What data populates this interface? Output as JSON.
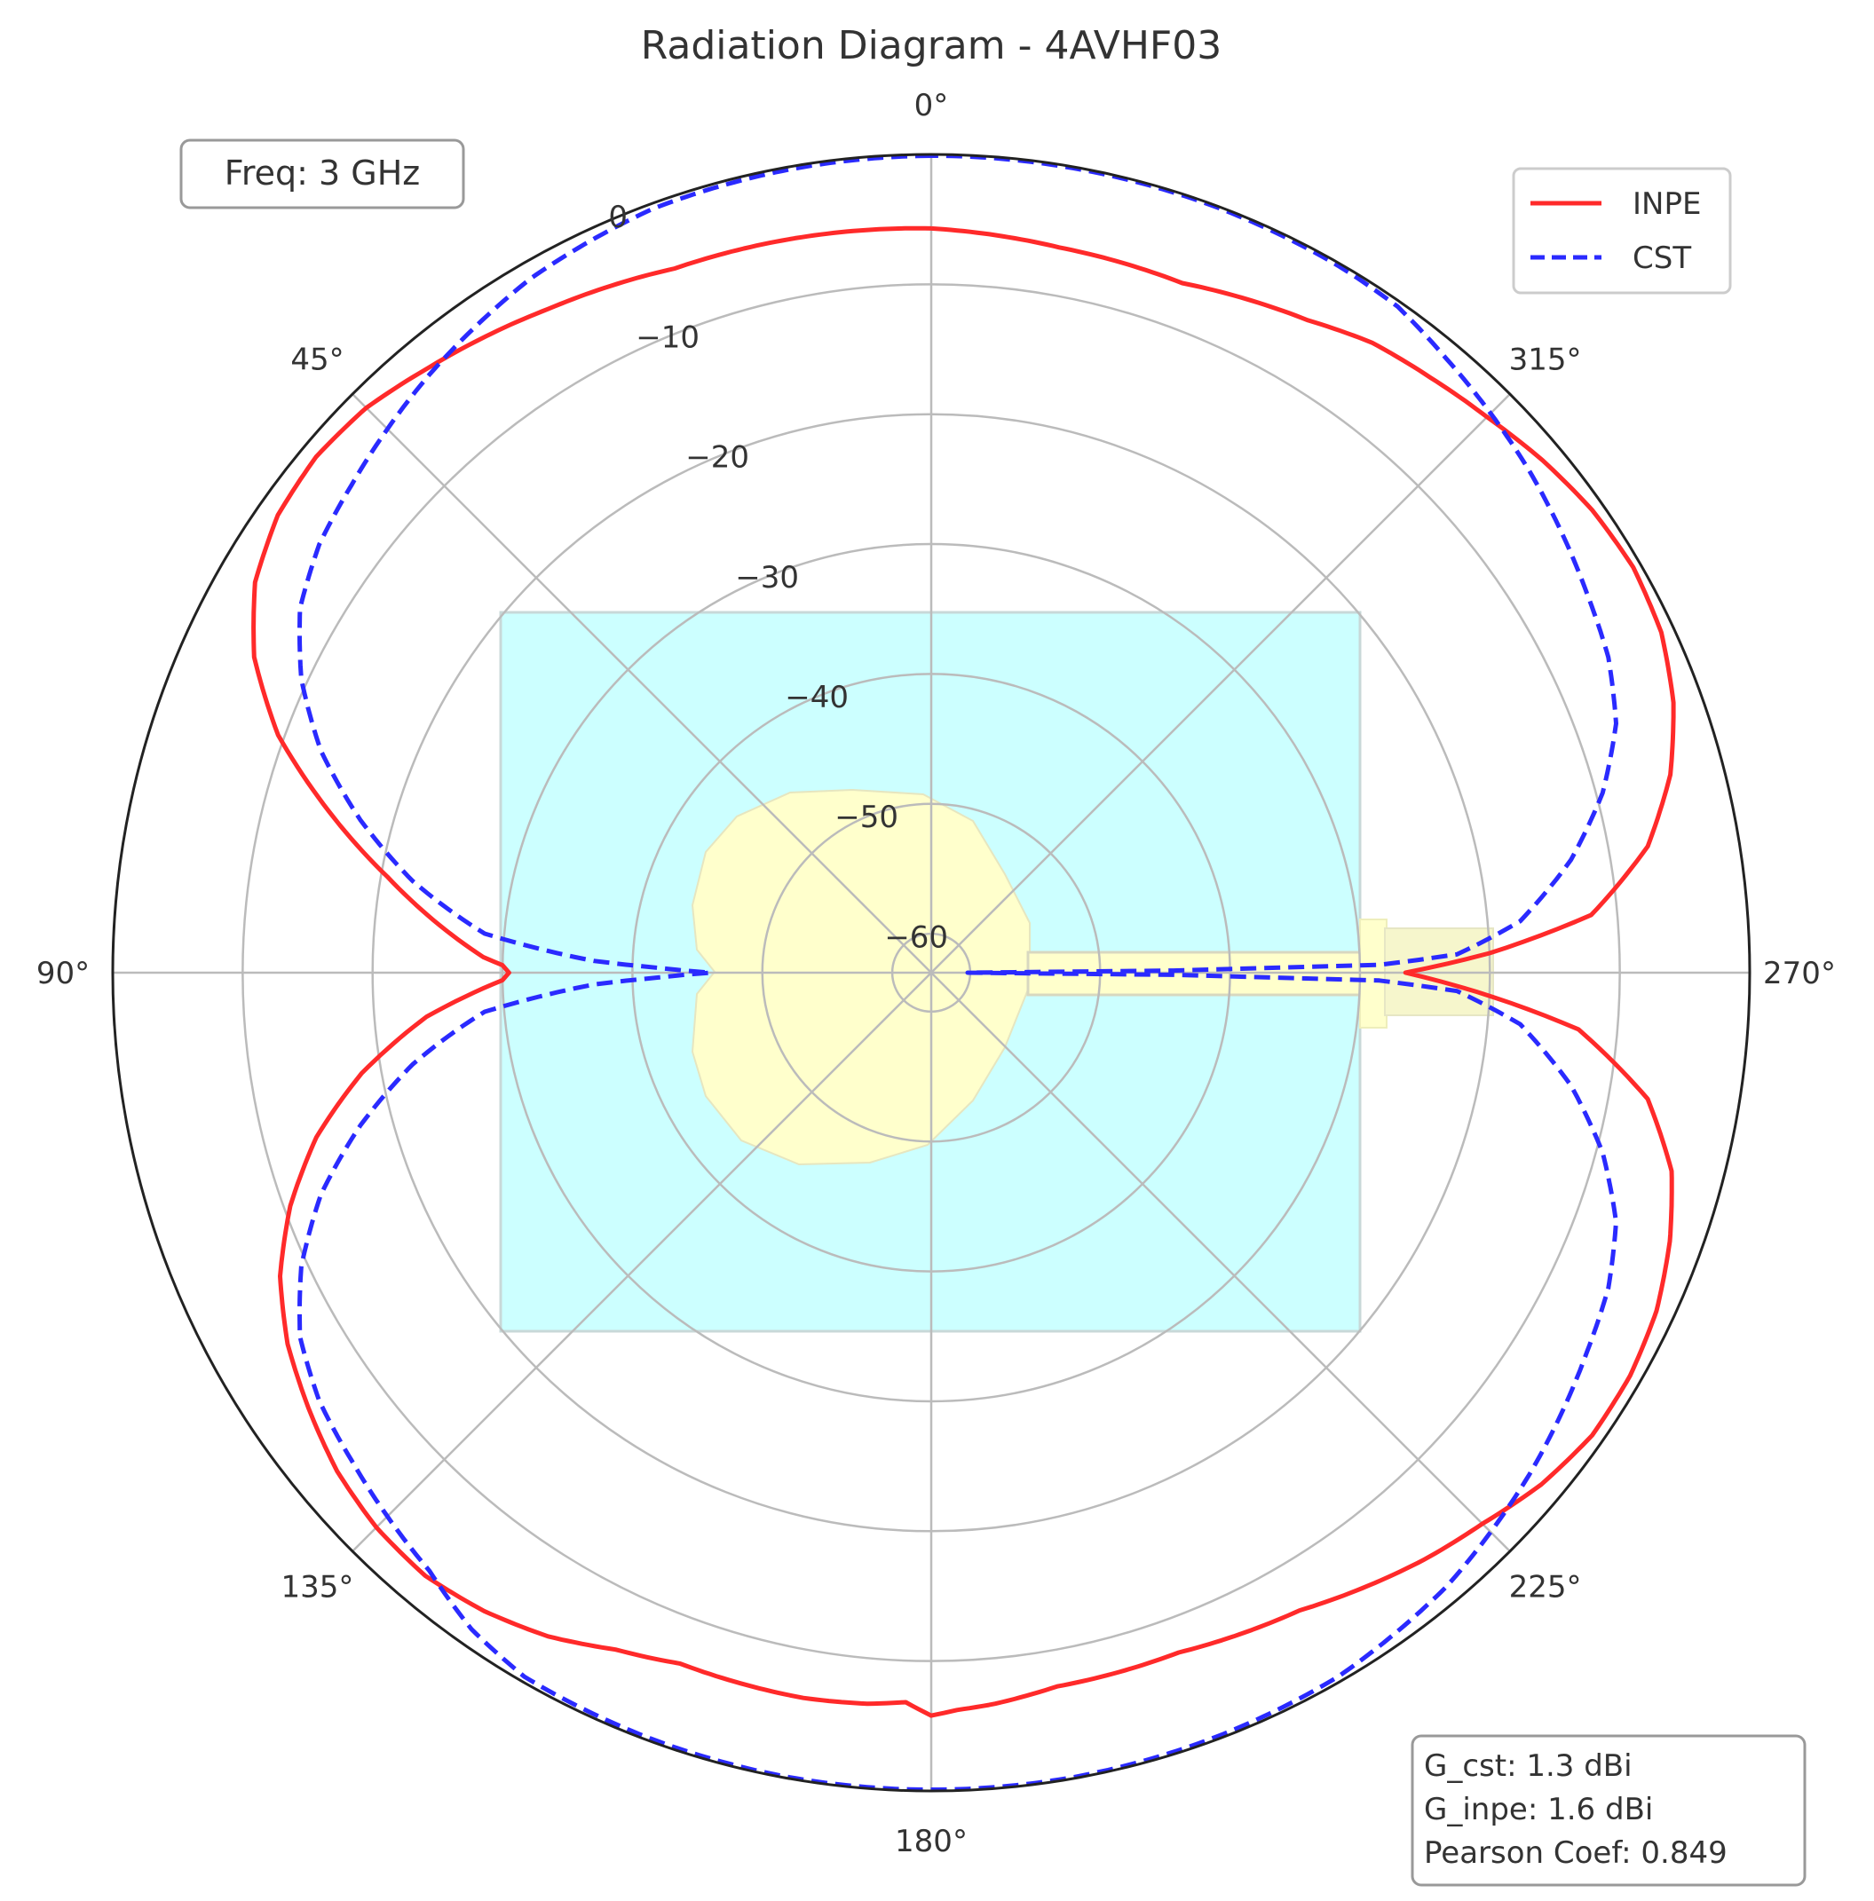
{
  "chart_data": {
    "type": "polar-line",
    "title": "Radiation Diagram - 4AVHF03",
    "theta_zero": "top",
    "theta_direction": "counterclockwise",
    "theta_ticks": [
      {
        "deg": 0,
        "label": "0°"
      },
      {
        "deg": 45,
        "label": "45°"
      },
      {
        "deg": 90,
        "label": "90°"
      },
      {
        "deg": 135,
        "label": "135°"
      },
      {
        "deg": 180,
        "label": "180°"
      },
      {
        "deg": 225,
        "label": "225°"
      },
      {
        "deg": 270,
        "label": "270°"
      },
      {
        "deg": 315,
        "label": "315°"
      }
    ],
    "rlim": [
      -63,
      0
    ],
    "r_ticks": [
      {
        "value": 0,
        "label": "0"
      },
      {
        "value": -10,
        "label": "−10"
      },
      {
        "value": -20,
        "label": "−20"
      },
      {
        "value": -30,
        "label": "−30"
      },
      {
        "value": -40,
        "label": "−40"
      },
      {
        "value": -50,
        "label": "−50"
      },
      {
        "value": -60,
        "label": "−60"
      }
    ],
    "grid": true,
    "legend_position": "top-right",
    "annotation": "Freq: 3 GHz",
    "stats": [
      "G_cst: 1.3 dBi",
      "G_inpe: 1.6 dBi",
      "Pearson Coef: 0.849"
    ],
    "series": [
      {
        "name": "INPE",
        "color": "#ff2a2a",
        "style": "solid",
        "theta": [
          0,
          10,
          20,
          30,
          40,
          45,
          50,
          55,
          60,
          65,
          70,
          75,
          80,
          85,
          88,
          89,
          90,
          91,
          92,
          95,
          100,
          105,
          110,
          115,
          120,
          125,
          130,
          135,
          140,
          145,
          150,
          155,
          160,
          170,
          175,
          178,
          180,
          182,
          185,
          190,
          200,
          210,
          220,
          225,
          230,
          235,
          240,
          245,
          250,
          255,
          260,
          265,
          268,
          270,
          272,
          275,
          280,
          285,
          290,
          295,
          300,
          305,
          310,
          315,
          320,
          325,
          330,
          340,
          350,
          360
        ],
        "values": [
          -5.7,
          -5.5,
          -5.3,
          -4.0,
          -2.4,
          -1.5,
          -1.2,
          -1.6,
          -2.9,
          -5.5,
          -9.5,
          -15,
          -20.5,
          -25.5,
          -28.5,
          -30,
          -30.5,
          -30,
          -28.5,
          -24,
          -18.5,
          -14,
          -10.5,
          -7.7,
          -5.8,
          -4.5,
          -3.3,
          -2.6,
          -2.4,
          -3.0,
          -4.0,
          -5.5,
          -6.4,
          -6.3,
          -6.5,
          -6.8,
          -5.8,
          -6.2,
          -6.5,
          -7.2,
          -7.3,
          -6.3,
          -4.0,
          -3.0,
          -1.7,
          -0.9,
          -0.9,
          -1.4,
          -2.5,
          -4.0,
          -7.0,
          -13,
          -21,
          -26.5,
          -20,
          -12,
          -7,
          -4.1,
          -2.2,
          -1.0,
          -0.6,
          -0.9,
          -1.6,
          -2.5,
          -3.2,
          -3.8,
          -5.0,
          -6.5,
          -6.3,
          -5.7
        ]
      },
      {
        "name": "CST",
        "color": "#2a2aff",
        "style": "dashed",
        "theta": [
          0,
          10,
          20,
          30,
          40,
          45,
          50,
          55,
          60,
          65,
          70,
          75,
          80,
          85,
          88,
          89,
          90,
          91,
          92,
          95,
          100,
          105,
          110,
          115,
          120,
          125,
          130,
          135,
          140,
          145,
          150,
          160,
          170,
          180,
          190,
          200,
          210,
          220,
          225,
          230,
          235,
          240,
          245,
          250,
          255,
          260,
          265,
          268,
          269,
          270,
          271,
          272,
          275,
          280,
          285,
          290,
          295,
          300,
          305,
          310,
          315,
          320,
          325,
          330,
          340,
          350,
          360
        ],
        "values": [
          -0.1,
          -0.2,
          -0.4,
          -1.3,
          -2.9,
          -3.8,
          -4.7,
          -5.5,
          -6.9,
          -9.5,
          -13,
          -17.5,
          -22.5,
          -28.5,
          -37,
          -42,
          -46,
          -42,
          -37,
          -28.5,
          -22.5,
          -17.5,
          -13,
          -9.5,
          -6.9,
          -5.5,
          -4.7,
          -3.8,
          -2.9,
          -1.3,
          -0.4,
          -0.2,
          -0.1,
          -0.1,
          -0.1,
          -0.2,
          -0.4,
          -1.3,
          -2.1,
          -2.9,
          -3.8,
          -4.7,
          -5.5,
          -6.9,
          -9.5,
          -13,
          -17.5,
          -22.5,
          -28.5,
          -60.2,
          -28.5,
          -22.5,
          -17.5,
          -13,
          -9.5,
          -6.9,
          -5.5,
          -4.7,
          -3.8,
          -2.9,
          -2.1,
          -1.3,
          -0.4,
          -0.2,
          -0.1,
          -0.1,
          -0.1
        ]
      }
    ]
  }
}
